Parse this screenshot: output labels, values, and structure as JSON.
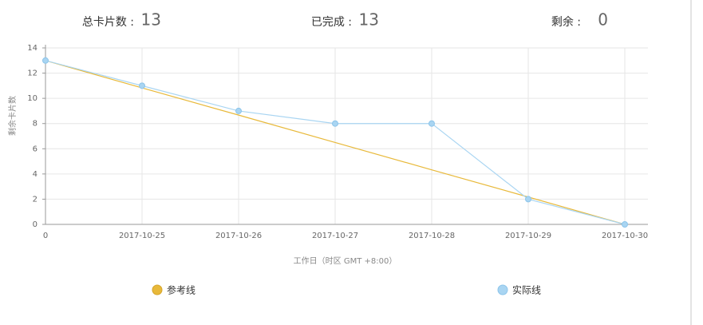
{
  "stats": [
    {
      "label": "总卡片数 :",
      "value": 13
    },
    {
      "label": "已完成 :",
      "value": 13
    },
    {
      "label": "剩余 :",
      "value": 0
    }
  ],
  "chart_data": {
    "type": "line",
    "y_label": "剩余卡片数",
    "x_label": "工作日（时区 GMT +8:00）",
    "categories": [
      "0",
      "2017-10-25",
      "2017-10-26",
      "2017-10-27",
      "2017-10-28",
      "2017-10-29",
      "2017-10-30"
    ],
    "series": [
      {
        "name": "参考线",
        "color": "#e8b93a",
        "values": [
          13,
          10.83,
          8.67,
          6.5,
          4.33,
          2.17,
          0
        ],
        "markers": false
      },
      {
        "name": "实际线",
        "color": "#a9d5f2",
        "values": [
          13,
          11,
          9,
          8,
          8,
          2,
          0
        ],
        "markers": true
      }
    ],
    "ylim": [
      0,
      14
    ],
    "yticks": [
      0,
      2,
      4,
      6,
      8,
      10,
      12,
      14
    ],
    "grid": true
  }
}
